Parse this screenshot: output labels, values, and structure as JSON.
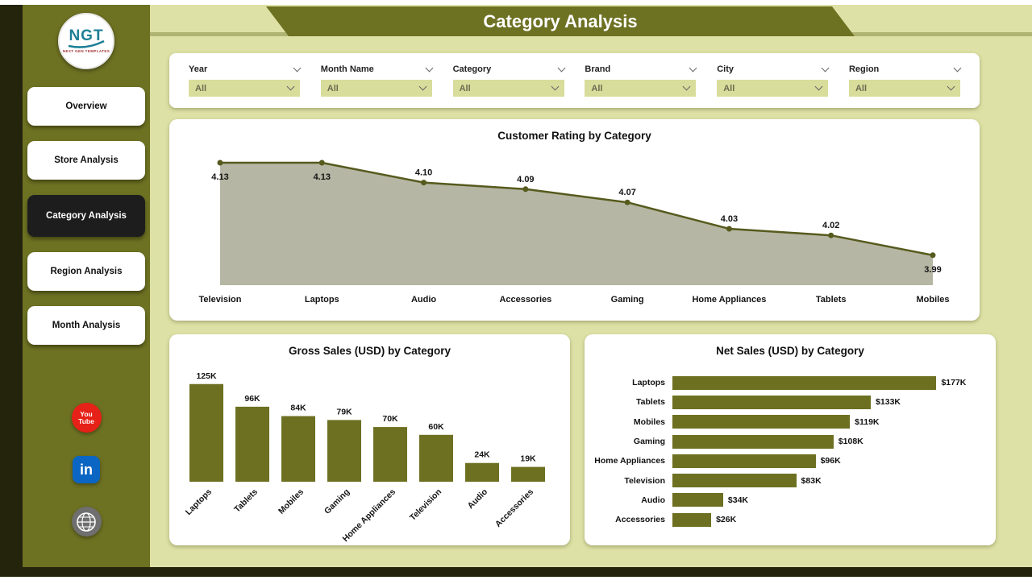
{
  "app": {
    "title": "Category Analysis"
  },
  "sidebar": {
    "logo": {
      "text": "NGT",
      "subtext": "NEXT GEN TEMPLATES"
    },
    "items": [
      {
        "label": "Overview",
        "active": false
      },
      {
        "label": "Store Analysis",
        "active": false
      },
      {
        "label": "Category Analysis",
        "active": true
      },
      {
        "label": "Region Analysis",
        "active": false
      },
      {
        "label": "Month Analysis",
        "active": false
      }
    ],
    "social_icons": {
      "youtube": "You Tube",
      "linkedin": "in",
      "website": "www"
    }
  },
  "filters": [
    {
      "label": "Year",
      "value": "All"
    },
    {
      "label": "Month Name",
      "value": "All"
    },
    {
      "label": "Category",
      "value": "All"
    },
    {
      "label": "Brand",
      "value": "All"
    },
    {
      "label": "City",
      "value": "All"
    },
    {
      "label": "Region",
      "value": "All"
    }
  ],
  "chart_data": [
    {
      "type": "area",
      "title": "Customer Rating by Category",
      "categories": [
        "Television",
        "Laptops",
        "Audio",
        "Accessories",
        "Gaming",
        "Home Appliances",
        "Tablets",
        "Mobiles"
      ],
      "values": [
        4.13,
        4.13,
        4.1,
        4.09,
        4.07,
        4.03,
        4.02,
        3.99
      ],
      "labels": [
        "4.13",
        "4.13",
        "4.10",
        "4.09",
        "4.07",
        "4.03",
        "4.02",
        "3.99"
      ],
      "ylim": [
        3.95,
        4.15
      ],
      "legend": "off",
      "grid": "off"
    },
    {
      "type": "bar",
      "title": "Gross Sales (USD) by Category",
      "categories": [
        "Laptops",
        "Tablets",
        "Mobiles",
        "Gaming",
        "Home Appliances",
        "Television",
        "Audio",
        "Accessories"
      ],
      "values": [
        125,
        96,
        84,
        79,
        70,
        60,
        24,
        19
      ],
      "labels": [
        "125K",
        "96K",
        "84K",
        "79K",
        "70K",
        "60K",
        "24K",
        "19K"
      ],
      "unit": "K USD",
      "ylim": [
        0,
        130
      ],
      "legend": "off",
      "grid": "off"
    },
    {
      "type": "bar-horizontal",
      "title": "Net Sales (USD) by Category",
      "categories": [
        "Laptops",
        "Tablets",
        "Mobiles",
        "Gaming",
        "Home Appliances",
        "Television",
        "Audio",
        "Accessories"
      ],
      "values": [
        177,
        133,
        119,
        108,
        96,
        83,
        34,
        26
      ],
      "labels": [
        "$177K",
        "$133K",
        "$119K",
        "$108K",
        "$96K",
        "$83K",
        "$34K",
        "$26K"
      ],
      "unit": "K USD",
      "xlim": [
        0,
        190
      ],
      "legend": "off",
      "grid": "off"
    }
  ],
  "colors": {
    "olive": "#6d7021",
    "olive_dark_line": "#565a1d",
    "area_fill": "#b5b6a3",
    "background": "#dde1a5",
    "sidebar": "#6d7122",
    "frame_dark": "#23240b",
    "active_nav": "#1d1d1d",
    "dropdown_fill": "#d9dd9b",
    "youtube_red": "#e62117",
    "linkedin_blue": "#0a66c2"
  }
}
